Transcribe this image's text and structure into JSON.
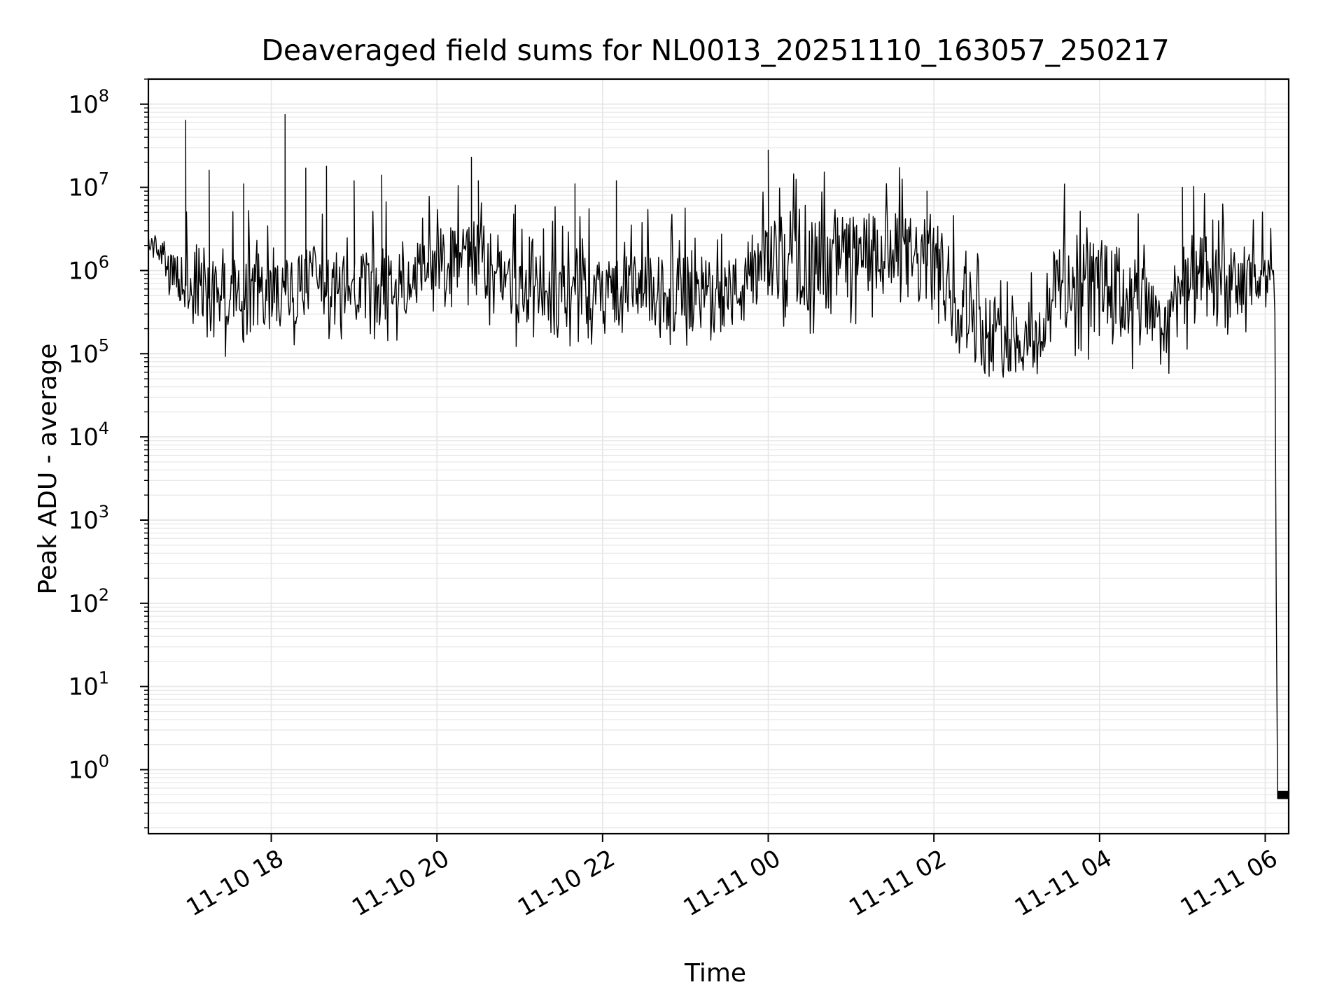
{
  "chart_data": {
    "type": "line",
    "title": "Deaveraged field sums for NL0013_20251110_163057_250217",
    "xlabel": "Time",
    "ylabel": "Peak ADU - average",
    "y_scale": "log",
    "ylim": [
      0.17,
      200000000
    ],
    "xlim": [
      "2025-11-10T16:31",
      "2025-11-11T06:17"
    ],
    "grid": true,
    "grid_color": "#e6e6e6",
    "line_color": "#000000",
    "x_ticks": [
      {
        "t": "2025-11-10T18:00",
        "label": "11-10 18"
      },
      {
        "t": "2025-11-10T20:00",
        "label": "11-10 20"
      },
      {
        "t": "2025-11-10T22:00",
        "label": "11-10 22"
      },
      {
        "t": "2025-11-11T00:00",
        "label": "11-11 00"
      },
      {
        "t": "2025-11-11T02:00",
        "label": "11-11 02"
      },
      {
        "t": "2025-11-11T04:00",
        "label": "11-11 04"
      },
      {
        "t": "2025-11-11T06:00",
        "label": "11-11 06"
      }
    ],
    "y_ticks": [
      {
        "exp": 0,
        "label": "10",
        "sup": "0"
      },
      {
        "exp": 1,
        "label": "10",
        "sup": "1"
      },
      {
        "exp": 2,
        "label": "10",
        "sup": "2"
      },
      {
        "exp": 3,
        "label": "10",
        "sup": "3"
      },
      {
        "exp": 4,
        "label": "10",
        "sup": "4"
      },
      {
        "exp": 5,
        "label": "10",
        "sup": "5"
      },
      {
        "exp": 6,
        "label": "10",
        "sup": "6"
      },
      {
        "exp": 7,
        "label": "10",
        "sup": "7"
      },
      {
        "exp": 8,
        "label": "10",
        "sup": "8"
      }
    ],
    "series": [
      {
        "note": "approximate envelope of the trace: [time, low, high] in ADU",
        "envelope": [
          [
            "2025-11-10T16:31",
            1500000,
            2800000
          ],
          [
            "2025-11-10T16:40",
            1200000,
            2600000
          ],
          [
            "2025-11-10T16:45",
            500000,
            1500000
          ],
          [
            "2025-11-10T17:00",
            200000,
            2000000
          ],
          [
            "2025-11-10T17:30",
            150000,
            1500000
          ],
          [
            "2025-11-10T18:00",
            200000,
            1200000
          ],
          [
            "2025-11-10T18:30",
            150000,
            2000000
          ],
          [
            "2025-11-10T19:00",
            200000,
            1500000
          ],
          [
            "2025-11-10T19:30",
            250000,
            2000000
          ],
          [
            "2025-11-10T20:00",
            500000,
            3000000
          ],
          [
            "2025-11-10T20:30",
            500000,
            4000000
          ],
          [
            "2025-11-10T21:00",
            200000,
            1500000
          ],
          [
            "2025-11-10T21:30",
            150000,
            1500000
          ],
          [
            "2025-11-10T22:00",
            250000,
            1500000
          ],
          [
            "2025-11-10T22:30",
            200000,
            1500000
          ],
          [
            "2025-11-10T23:00",
            150000,
            1500000
          ],
          [
            "2025-11-10T23:45",
            200000,
            1500000
          ],
          [
            "2025-11-11T00:00",
            400000,
            4000000
          ],
          [
            "2025-11-11T00:30",
            300000,
            4000000
          ],
          [
            "2025-11-11T01:00",
            400000,
            5000000
          ],
          [
            "2025-11-11T01:30",
            400000,
            5000000
          ],
          [
            "2025-11-11T02:00",
            300000,
            4000000
          ],
          [
            "2025-11-11T02:20",
            100000,
            1500000
          ],
          [
            "2025-11-11T02:45",
            50000,
            400000
          ],
          [
            "2025-11-11T03:15",
            60000,
            300000
          ],
          [
            "2025-11-11T03:30",
            150000,
            3000000
          ],
          [
            "2025-11-11T04:00",
            150000,
            2500000
          ],
          [
            "2025-11-11T04:30",
            100000,
            1500000
          ],
          [
            "2025-11-11T04:45",
            70000,
            400000
          ],
          [
            "2025-11-11T05:00",
            200000,
            3000000
          ],
          [
            "2025-11-11T05:30",
            150000,
            2000000
          ],
          [
            "2025-11-11T06:00",
            300000,
            1500000
          ],
          [
            "2025-11-11T06:05",
            800000,
            1200000
          ]
        ],
        "spikes": [
          [
            "2025-11-10T16:58",
            64000000
          ],
          [
            "2025-11-10T17:15",
            16000000
          ],
          [
            "2025-11-10T17:40",
            11000000
          ],
          [
            "2025-11-10T18:10",
            75000000
          ],
          [
            "2025-11-10T18:25",
            17000000
          ],
          [
            "2025-11-10T18:40",
            18000000
          ],
          [
            "2025-11-10T19:00",
            12000000
          ],
          [
            "2025-11-10T19:20",
            14000000
          ],
          [
            "2025-11-10T20:25",
            23000000
          ],
          [
            "2025-11-10T20:30",
            12000000
          ],
          [
            "2025-11-10T21:40",
            11000000
          ],
          [
            "2025-11-10T22:10",
            12000000
          ],
          [
            "2025-11-11T00:00",
            28000000
          ],
          [
            "2025-11-11T01:55",
            9000000
          ],
          [
            "2025-11-11T05:00",
            10000000
          ]
        ],
        "tail": [
          [
            "2025-11-11T06:06",
            1000000
          ],
          [
            "2025-11-11T06:07",
            300000
          ],
          [
            "2025-11-11T06:08",
            100
          ],
          [
            "2025-11-11T06:09",
            0.45
          ],
          [
            "2025-11-11T06:17",
            0.45
          ]
        ],
        "tail_band": [
          0.45,
          0.55
        ]
      }
    ]
  }
}
